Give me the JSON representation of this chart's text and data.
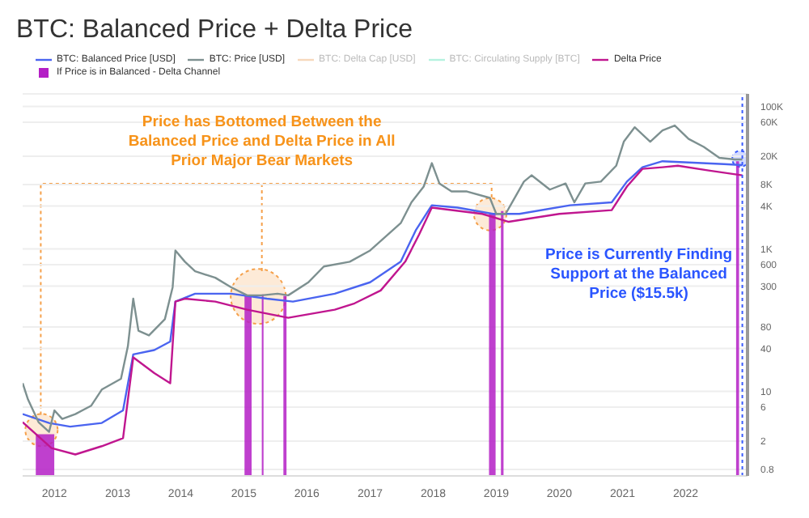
{
  "chart_data": {
    "type": "line",
    "title": "BTC: Balanced Price + Delta Price",
    "legend": "top",
    "grid": "y",
    "log": "y",
    "xlim": [
      "2011-07",
      "2022-12-25"
    ],
    "xticks": [
      "2012",
      "2013",
      "2014",
      "2015",
      "2016",
      "2017",
      "2018",
      "2019",
      "2020",
      "2021",
      "2022"
    ],
    "ylim": [
      0.65,
      150000
    ],
    "yticks": [
      {
        "value": 100000,
        "label": "100K"
      },
      {
        "value": 60000,
        "label": "60K"
      },
      {
        "value": 20000,
        "label": "20K"
      },
      {
        "value": 8000,
        "label": "8K"
      },
      {
        "value": 4000,
        "label": "4K"
      },
      {
        "value": 1000,
        "label": "1K"
      },
      600,
      300,
      80,
      40,
      10,
      6,
      2,
      0.8
    ],
    "ref_lines": [
      {
        "axis": "x",
        "value": "2022-11-25",
        "color": "#3a5cff",
        "line_style": "dotted"
      }
    ],
    "annotations": [
      "Price has Bottomed Between the Balanced Price and Delta Price in All Prior Major Bear Markets",
      "Price is Currently Finding Support at the Balanced Price ($15.5k)"
    ],
    "series": [
      {
        "name": "BTC: Balanced Price [USD]",
        "color": "#4a64f0",
        "x": [
          "2011-07",
          "2011-12",
          "2012-04",
          "2012-10",
          "2013-02",
          "2013-04",
          "2013-08",
          "2013-11",
          "2013-12",
          "2014-03-25",
          "2014-10-20",
          "2015-05-15",
          "2015-10-12",
          "2016-06-10",
          "2017-01",
          "2017-06-27",
          "2017-09-24",
          "2017-12-24",
          "2018-05-22",
          "2018-12-13",
          "2019-05-15",
          "2020-03-03",
          "2020-10-30",
          "2021-01-26",
          "2021-04-26",
          "2021-08-20",
          "2022-08-11",
          "2022-11-25"
        ],
        "values": [
          4.8,
          3.6,
          3.2,
          3.6,
          5.4,
          33,
          38,
          50,
          182,
          235,
          235,
          200,
          182,
          235,
          340,
          661,
          1860,
          4100,
          3800,
          3100,
          3100,
          4100,
          4500,
          8800,
          14000,
          17000,
          15500,
          15000
        ]
      },
      {
        "name": "BTC: Price [USD]",
        "color": "#7d9090",
        "x": [
          "2011-07",
          "2011-08",
          "2011-10",
          "2011-12",
          "2012-01",
          "2012-02-15",
          "2012-05",
          "2012-08",
          "2012-10",
          "2013-01-20",
          "2013-03",
          "2013-04",
          "2013-05",
          "2013-07",
          "2013-10",
          "2013-11-15",
          "2013-12",
          "2014-01-25",
          "2014-03-25",
          "2014-07-20",
          "2014-10-20",
          "2015-01-20",
          "2015-04-15",
          "2015-07-15",
          "2015-09-15",
          "2016-01-08",
          "2016-04-08",
          "2016-09-05",
          "2017-01",
          "2017-06-27",
          "2017-08-28",
          "2017-11-07",
          "2017-12-24",
          "2018-02-06",
          "2018-04-17",
          "2018-07-15",
          "2018-11-25",
          "2019-01",
          "2019-02-24",
          "2019-06-10",
          "2019-07-24",
          "2019-11-07",
          "2020-02-06",
          "2020-03-28",
          "2020-05-30",
          "2020-08-28",
          "2020-11-25",
          "2021-01-08",
          "2021-03-12",
          "2021-06-10",
          "2021-08-20",
          "2021-10-30",
          "2022-01-18",
          "2022-04-16",
          "2022-07-15",
          "2022-10-12",
          "2022-11-25"
        ],
        "values": [
          13,
          7.7,
          3.7,
          2.7,
          5.4,
          4.1,
          4.8,
          6.3,
          10.6,
          15,
          43,
          200,
          71,
          61,
          103,
          289,
          950,
          660,
          485,
          394,
          289,
          223,
          223,
          235,
          223,
          337,
          566,
          661,
          950,
          2300,
          4500,
          7500,
          16000,
          8300,
          6400,
          6400,
          5200,
          3100,
          3100,
          8800,
          10800,
          6800,
          8300,
          4500,
          8300,
          8800,
          14700,
          32000,
          51000,
          32000,
          46000,
          54000,
          35000,
          27000,
          19000,
          18000,
          18000
        ]
      },
      {
        "name": "BTC: Delta Cap [USD]",
        "color": "#f0b27a"
      },
      {
        "name": "BTC: Circulating Supply [BTC]",
        "color": "#6ee7c0"
      },
      {
        "name": "Delta Price",
        "color": "#c0168f",
        "x": [
          "2011-07",
          "2011-12-15",
          "2012-05",
          "2012-10",
          "2013-02",
          "2013-04",
          "2013-08",
          "2013-11",
          "2013-12",
          "2014-01-25",
          "2014-07-20",
          "2015-01-20",
          "2015-09-15",
          "2016-06-10",
          "2016-10-03",
          "2017-03-03",
          "2017-07-23",
          "2017-10-12",
          "2017-12-24",
          "2018-10-12",
          "2019-03-14",
          "2020-01",
          "2020-10-30",
          "2021-01-26",
          "2021-04-26",
          "2021-08-20",
          "2021-11-17",
          "2022-05-14",
          "2022-11-25"
        ],
        "values": [
          3.7,
          1.6,
          1.3,
          1.7,
          2.2,
          30,
          18,
          13,
          182,
          200,
          182,
          140,
          108,
          140,
          172,
          261,
          661,
          1600,
          3800,
          3100,
          2400,
          3100,
          3500,
          7500,
          13300,
          14000,
          14700,
          12600,
          10800
        ]
      },
      {
        "name": "If Price is in Balanced - Delta Channel",
        "type": "area",
        "color": "#b41ec6",
        "x": [
          "2011-09-15",
          "2011-12-31",
          "2012-01-01",
          "2015-01-05",
          "2015-02-15",
          "2015-02-16",
          "2015-04-15",
          "2015-04-25",
          "2015-04-26",
          "2015-08-18",
          "2015-09-05",
          "2015-09-06",
          "2018-11-20",
          "2018-12-28",
          "2018-12-29",
          "2019-01-28",
          "2019-02-12",
          "2019-02-13",
          "2022-10-20",
          "2022-11-06"
        ],
        "values": [
          2.5,
          2.5,
          null,
          223,
          223,
          null,
          230,
          230,
          null,
          220,
          220,
          null,
          3200,
          3200,
          null,
          3400,
          3400,
          null,
          17000,
          17000
        ]
      }
    ]
  }
}
